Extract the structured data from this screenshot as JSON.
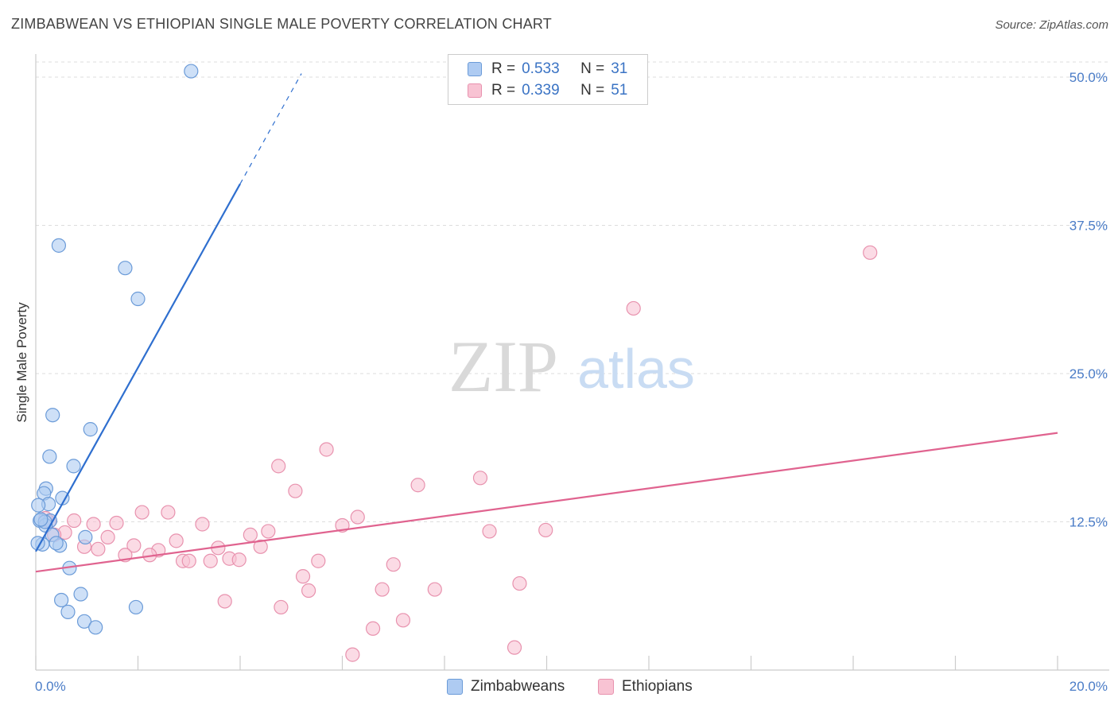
{
  "header": {
    "title": "ZIMBABWEAN VS ETHIOPIAN SINGLE MALE POVERTY CORRELATION CHART",
    "source": "Source: ZipAtlas.com"
  },
  "watermark": {
    "zip": "ZIP",
    "atlas": "atlas"
  },
  "legend": {
    "r_label": "R =",
    "n_label": "N =",
    "rows": [
      {
        "r": "0.533",
        "n": "31"
      },
      {
        "r": "0.339",
        "n": "51"
      }
    ]
  },
  "colors": {
    "zimbabweans_fill": "#aecbf2",
    "zimbabweans_stroke": "#6b9bd8",
    "zimbabweans_line": "#2f6fcf",
    "ethiopians_fill": "#f8c3d3",
    "ethiopians_stroke": "#e892ae",
    "ethiopians_line": "#e0638f",
    "axis_text": "#4a7cc7"
  },
  "chart_data": {
    "type": "scatter",
    "title": "ZIMBABWEAN VS ETHIOPIAN SINGLE MALE POVERTY CORRELATION CHART",
    "xlabel": "",
    "ylabel": "Single Male Poverty",
    "xlim": [
      0,
      20
    ],
    "ylim": [
      0,
      50
    ],
    "x_tick_labels": [
      "0.0%",
      "20.0%"
    ],
    "y_tick_labels": [
      "12.5%",
      "25.0%",
      "37.5%",
      "50.0%"
    ],
    "y_ticks": [
      12.5,
      25.0,
      37.5,
      50.0
    ],
    "grid": true,
    "legend_position": "top-center",
    "series": [
      {
        "name": "Zimbabweans",
        "r": 0.533,
        "n": 31,
        "trend": {
          "x0": 0.0,
          "y0": 10.0,
          "x1": 4.0,
          "y1": 41.0,
          "dashed_to_x": 5.2
        },
        "points": [
          [
            3.04,
            50.5
          ],
          [
            0.45,
            35.8
          ],
          [
            1.75,
            33.9
          ],
          [
            2.0,
            31.3
          ],
          [
            0.33,
            21.5
          ],
          [
            1.07,
            20.3
          ],
          [
            0.27,
            18.0
          ],
          [
            0.74,
            17.2
          ],
          [
            0.2,
            15.3
          ],
          [
            0.16,
            14.9
          ],
          [
            0.52,
            14.5
          ],
          [
            0.25,
            14.0
          ],
          [
            0.05,
            13.9
          ],
          [
            0.08,
            12.6
          ],
          [
            0.28,
            12.6
          ],
          [
            0.19,
            12.2
          ],
          [
            0.32,
            11.4
          ],
          [
            0.47,
            10.5
          ],
          [
            0.13,
            10.6
          ],
          [
            0.4,
            10.7
          ],
          [
            0.97,
            11.2
          ],
          [
            0.04,
            10.7
          ],
          [
            0.66,
            8.6
          ],
          [
            0.88,
            6.4
          ],
          [
            0.5,
            5.9
          ],
          [
            0.63,
            4.9
          ],
          [
            1.96,
            5.3
          ],
          [
            0.95,
            4.1
          ],
          [
            1.17,
            3.6
          ],
          [
            0.18,
            12.5
          ],
          [
            0.1,
            12.7
          ]
        ]
      },
      {
        "name": "Ethiopians",
        "r": 0.339,
        "n": 51,
        "trend": {
          "x0": 0.0,
          "y0": 8.3,
          "x1": 20.0,
          "y1": 20.0
        },
        "points": [
          [
            16.33,
            35.2
          ],
          [
            11.7,
            30.5
          ],
          [
            5.69,
            18.6
          ],
          [
            4.75,
            17.2
          ],
          [
            7.48,
            15.6
          ],
          [
            8.7,
            16.2
          ],
          [
            5.08,
            15.1
          ],
          [
            2.08,
            13.3
          ],
          [
            2.59,
            13.3
          ],
          [
            6.3,
            12.9
          ],
          [
            0.26,
            12.5
          ],
          [
            0.19,
            12.8
          ],
          [
            0.75,
            12.6
          ],
          [
            1.13,
            12.3
          ],
          [
            1.58,
            12.4
          ],
          [
            3.26,
            12.3
          ],
          [
            6.0,
            12.2
          ],
          [
            8.88,
            11.7
          ],
          [
            9.98,
            11.8
          ],
          [
            4.55,
            11.7
          ],
          [
            4.2,
            11.4
          ],
          [
            0.57,
            11.6
          ],
          [
            0.36,
            11.4
          ],
          [
            1.41,
            11.2
          ],
          [
            2.75,
            10.9
          ],
          [
            1.92,
            10.5
          ],
          [
            3.57,
            10.3
          ],
          [
            4.4,
            10.4
          ],
          [
            0.95,
            10.4
          ],
          [
            1.22,
            10.2
          ],
          [
            2.4,
            10.1
          ],
          [
            2.23,
            9.7
          ],
          [
            1.75,
            9.7
          ],
          [
            3.79,
            9.4
          ],
          [
            3.98,
            9.3
          ],
          [
            3.42,
            9.2
          ],
          [
            2.88,
            9.2
          ],
          [
            3.0,
            9.2
          ],
          [
            5.53,
            9.2
          ],
          [
            7.0,
            8.9
          ],
          [
            5.23,
            7.9
          ],
          [
            5.34,
            6.7
          ],
          [
            6.78,
            6.8
          ],
          [
            7.81,
            6.8
          ],
          [
            9.47,
            7.3
          ],
          [
            3.7,
            5.8
          ],
          [
            4.8,
            5.3
          ],
          [
            7.19,
            4.2
          ],
          [
            6.6,
            3.5
          ],
          [
            9.37,
            1.9
          ],
          [
            6.2,
            1.3
          ]
        ]
      }
    ]
  },
  "bottom_legend": [
    "Zimbabweans",
    "Ethiopians"
  ]
}
